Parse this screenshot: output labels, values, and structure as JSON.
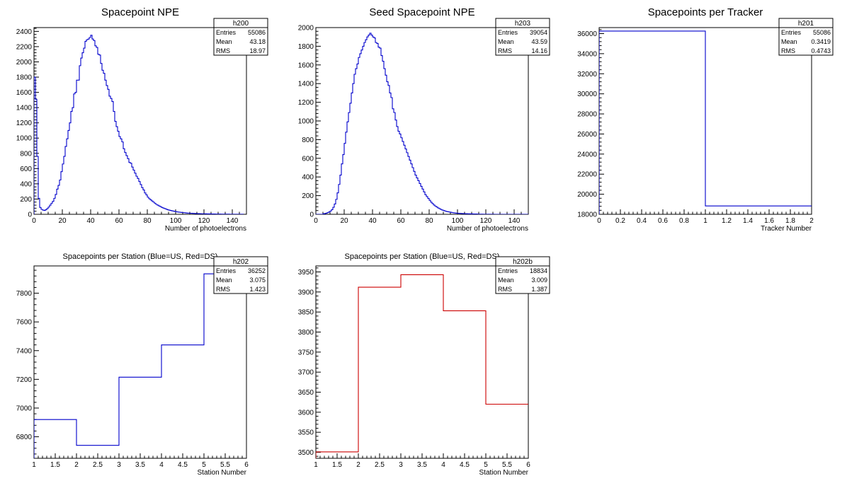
{
  "chart_data": [
    {
      "type": "histogram",
      "title": "Spacepoint NPE",
      "xlabel": "Number of photoelectrons",
      "ylabel": "",
      "xlim": [
        0,
        150
      ],
      "ylim": [
        0,
        2450
      ],
      "xticks": [
        0,
        20,
        40,
        60,
        80,
        100,
        120,
        140
      ],
      "yticks": [
        0,
        200,
        400,
        600,
        800,
        1000,
        1200,
        1400,
        1600,
        1800,
        2000,
        2200,
        2400
      ],
      "color": "#0000cc",
      "bin_width": 1,
      "x_start": 0,
      "values": [
        1800,
        1510,
        760,
        210,
        90,
        65,
        55,
        50,
        60,
        75,
        95,
        120,
        145,
        170,
        210,
        260,
        330,
        380,
        450,
        560,
        660,
        760,
        890,
        990,
        1100,
        1200,
        1350,
        1400,
        1580,
        1600,
        1760,
        1760,
        1950,
        2050,
        2120,
        2180,
        2270,
        2290,
        2300,
        2320,
        2350,
        2300,
        2280,
        2210,
        2190,
        2100,
        2090,
        1980,
        1890,
        1850,
        1760,
        1690,
        1640,
        1550,
        1520,
        1480,
        1350,
        1220,
        1150,
        1090,
        1020,
        990,
        950,
        860,
        810,
        770,
        730,
        680,
        670,
        620,
        580,
        540,
        500,
        470,
        430,
        390,
        350,
        320,
        280,
        255,
        225,
        205,
        190,
        175,
        160,
        145,
        130,
        120,
        110,
        100,
        90,
        82,
        75,
        68,
        60,
        55,
        50,
        46,
        42,
        38,
        34,
        31,
        28,
        26,
        24,
        22,
        20,
        18,
        16,
        15,
        14,
        13,
        12,
        11,
        10,
        9,
        9,
        8,
        7,
        7,
        6,
        6,
        5,
        5,
        5,
        4,
        4,
        4,
        3,
        3,
        3,
        3,
        2,
        2,
        2,
        2,
        2,
        2,
        1,
        1,
        1,
        1,
        1,
        1,
        1,
        1,
        1,
        1
      ],
      "stats": {
        "name": "h200",
        "entries": "55086",
        "mean": "43.18",
        "rms": "18.97"
      }
    },
    {
      "type": "histogram",
      "title": "Seed Spacepoint NPE",
      "xlabel": "Number of photoelectrons",
      "ylabel": "",
      "xlim": [
        0,
        150
      ],
      "ylim": [
        0,
        2000
      ],
      "xticks": [
        0,
        20,
        40,
        60,
        80,
        100,
        120,
        140
      ],
      "yticks": [
        0,
        200,
        400,
        600,
        800,
        1000,
        1200,
        1400,
        1600,
        1800,
        2000
      ],
      "color": "#0000cc",
      "bin_width": 1,
      "x_start": 0,
      "values": [
        0,
        0,
        0,
        0,
        0,
        5,
        8,
        12,
        18,
        25,
        35,
        50,
        75,
        110,
        160,
        230,
        320,
        420,
        540,
        640,
        760,
        880,
        990,
        1090,
        1190,
        1300,
        1400,
        1500,
        1560,
        1610,
        1680,
        1720,
        1760,
        1800,
        1840,
        1870,
        1900,
        1920,
        1940,
        1920,
        1900,
        1890,
        1840,
        1830,
        1790,
        1780,
        1700,
        1640,
        1560,
        1490,
        1420,
        1380,
        1300,
        1250,
        1130,
        1090,
        1010,
        940,
        890,
        860,
        820,
        780,
        740,
        700,
        660,
        620,
        580,
        540,
        500,
        460,
        420,
        390,
        360,
        330,
        300,
        270,
        240,
        210,
        190,
        170,
        150,
        130,
        115,
        100,
        88,
        78,
        68,
        60,
        52,
        45,
        40,
        35,
        30,
        27,
        24,
        21,
        18,
        16,
        14,
        12,
        11,
        10,
        9,
        8,
        7,
        6,
        6,
        5,
        5,
        4,
        4,
        3,
        3,
        3,
        2,
        2,
        2,
        2,
        1,
        1,
        1,
        1,
        1,
        1,
        1,
        1,
        0,
        0,
        0,
        0,
        0,
        0,
        0,
        0,
        0,
        0,
        0,
        0,
        0,
        0,
        0,
        0,
        0,
        0,
        0,
        0,
        0,
        0,
        0,
        0
      ],
      "stats": {
        "name": "h203",
        "entries": "39054",
        "mean": "43.59",
        "rms": "14.16"
      }
    },
    {
      "type": "histogram",
      "title": "Spacepoints per Tracker",
      "xlabel": "Tracker Number",
      "ylabel": "",
      "xlim": [
        0,
        2
      ],
      "ylim": [
        18000,
        36600
      ],
      "xticks": [
        0,
        0.2,
        0.4,
        0.6,
        0.8,
        1,
        1.2,
        1.4,
        1.6,
        1.8,
        2
      ],
      "yticks": [
        18000,
        20000,
        22000,
        24000,
        26000,
        28000,
        30000,
        32000,
        34000,
        36000
      ],
      "color": "#0000cc",
      "bin_width": 1,
      "x_start": 0,
      "values": [
        36252,
        18834
      ],
      "stats": {
        "name": "h201",
        "entries": "55086",
        "mean": "0.3419",
        "rms": "0.4743"
      }
    },
    {
      "type": "histogram",
      "title": "Spacepoints per Station (Blue=US, Red=DS)",
      "xlabel": "Station Number",
      "ylabel": "",
      "xlim": [
        1,
        6
      ],
      "ylim": [
        6650,
        7990
      ],
      "xticks": [
        1,
        1.5,
        2,
        2.5,
        3,
        3.5,
        4,
        4.5,
        5,
        5.5,
        6
      ],
      "yticks": [
        6800,
        7000,
        7200,
        7400,
        7600,
        7800
      ],
      "color": "#0000cc",
      "bin_width": 1,
      "x_start": 1,
      "values": [
        6920,
        6740,
        7215,
        7440,
        7935
      ],
      "stats": {
        "name": "h202",
        "entries": "36252",
        "mean": "3.075",
        "rms": "1.423"
      }
    },
    {
      "type": "histogram",
      "title": "Spacepoints per Station (Blue=US, Red=DS)",
      "xlabel": "Station Number",
      "ylabel": "",
      "xlim": [
        1,
        6
      ],
      "ylim": [
        3485,
        3965
      ],
      "xticks": [
        1,
        1.5,
        2,
        2.5,
        3,
        3.5,
        4,
        4.5,
        5,
        5.5,
        6
      ],
      "yticks": [
        3500,
        3550,
        3600,
        3650,
        3700,
        3750,
        3800,
        3850,
        3900,
        3950
      ],
      "color": "#cc0000",
      "bin_width": 1,
      "x_start": 1,
      "values": [
        3501,
        3912,
        3943,
        3853,
        3620
      ],
      "stats": {
        "name": "h202b",
        "entries": "18834",
        "mean": "3.009",
        "rms": "1.387"
      }
    }
  ],
  "stat_labels": {
    "entries": "Entries",
    "mean": "Mean",
    "rms": "RMS"
  }
}
